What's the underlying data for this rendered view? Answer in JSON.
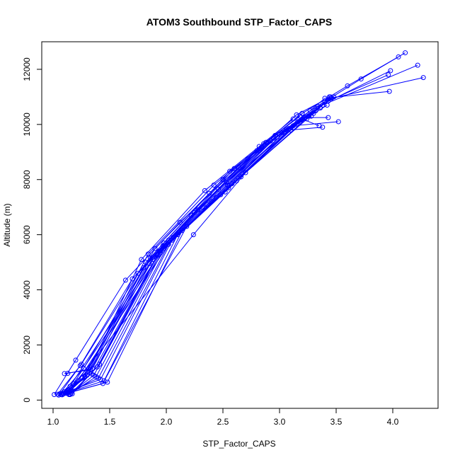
{
  "chart_data": {
    "type": "line",
    "title": "ATOM3 Southbound STP_Factor_CAPS",
    "xlabel": "STP_Factor_CAPS",
    "ylabel": "Altitude (m)",
    "xlim": [
      0.9,
      4.4
    ],
    "ylim": [
      -300,
      13000
    ],
    "xticks": [
      1.0,
      1.5,
      2.0,
      2.5,
      3.0,
      3.5,
      4.0
    ],
    "xtick_labels": [
      "1.0",
      "1.5",
      "2.0",
      "2.5",
      "3.0",
      "3.5",
      "4.0"
    ],
    "yticks": [
      0,
      2000,
      4000,
      6000,
      8000,
      10000,
      12000
    ],
    "ytick_labels": [
      "0",
      "2000",
      "4000",
      "6000",
      "8000",
      "10000",
      "12000"
    ],
    "grid": false,
    "legend": "none",
    "marker": "open-circle",
    "color": "#0000ff",
    "series": [
      {
        "x": [
          1.01,
          1.2,
          1.64,
          2.12,
          2.72,
          3.15,
          3.45
        ],
        "y": [
          200,
          1450,
          4350,
          6450,
          8750,
          10350,
          11000
        ]
      },
      {
        "x": [
          1.04,
          1.25,
          1.75,
          2.25,
          2.84,
          3.27,
          3.72,
          4.11
        ],
        "y": [
          210,
          1300,
          4600,
          6800,
          9150,
          10500,
          11650,
          12600
        ]
      },
      {
        "x": [
          1.06,
          1.24,
          1.7,
          2.22,
          2.8,
          3.2,
          3.6,
          4.05
        ],
        "y": [
          230,
          1250,
          4400,
          6700,
          9050,
          10400,
          11400,
          12450
        ]
      },
      {
        "x": [
          1.08,
          1.27,
          1.8,
          2.28,
          2.9,
          3.34,
          3.98
        ],
        "y": [
          250,
          1150,
          4800,
          6900,
          9350,
          10650,
          11950
        ]
      },
      {
        "x": [
          1.1,
          1.3,
          1.85,
          2.32,
          2.95,
          3.38,
          4.22
        ],
        "y": [
          300,
          1050,
          4950,
          7000,
          9500,
          10700,
          12150
        ]
      },
      {
        "x": [
          1.12,
          1.32,
          1.88,
          2.36,
          3.0,
          3.43,
          3.96
        ],
        "y": [
          330,
          1000,
          5100,
          7100,
          9650,
          10850,
          11800
        ]
      },
      {
        "x": [
          1.13,
          1.34,
          1.92,
          2.4,
          3.05,
          3.46,
          4.27
        ],
        "y": [
          360,
          950,
          5250,
          7200,
          9750,
          10950,
          11700
        ]
      },
      {
        "x": [
          1.14,
          1.36,
          1.95,
          2.44,
          3.08,
          3.4,
          3.97
        ],
        "y": [
          200,
          900,
          5350,
          7350,
          9850,
          10950,
          11200
        ]
      },
      {
        "x": [
          1.15,
          1.38,
          1.98,
          2.48,
          3.12,
          3.52
        ],
        "y": [
          220,
          850,
          5500,
          7450,
          9950,
          10100
        ]
      },
      {
        "x": [
          1.12,
          1.4,
          2.02,
          2.52,
          3.15,
          3.48
        ],
        "y": [
          250,
          800,
          5650,
          7550,
          10000,
          11000
        ]
      },
      {
        "x": [
          1.11,
          1.42,
          2.05,
          2.55,
          3.18,
          3.4
        ],
        "y": [
          280,
          750,
          5800,
          7700,
          10100,
          10800
        ]
      },
      {
        "x": [
          1.09,
          1.45,
          2.1,
          2.58,
          3.2,
          3.35
        ],
        "y": [
          230,
          700,
          6000,
          7850,
          10200,
          9950
        ]
      },
      {
        "x": [
          1.08,
          1.48,
          2.14,
          2.62,
          3.22,
          3.43
        ],
        "y": [
          190,
          650,
          6150,
          7950,
          10250,
          10250
        ]
      },
      {
        "x": [
          1.13,
          1.44,
          2.18,
          2.66,
          3.26,
          3.45
        ],
        "y": [
          260,
          600,
          6300,
          8100,
          10300,
          10950
        ]
      },
      {
        "x": [
          1.15,
          1.16,
          2.24,
          2.7,
          3.3,
          3.44
        ],
        "y": [
          200,
          450,
          6000,
          8250,
          10400,
          11000
        ]
      },
      {
        "x": [
          1.05,
          1.15,
          1.98,
          2.56,
          2.96,
          3.16
        ],
        "y": [
          180,
          500,
          5700,
          8300,
          9600,
          10100
        ]
      },
      {
        "x": [
          1.07,
          1.18,
          2.02,
          2.6,
          3.02,
          3.24
        ],
        "y": [
          200,
          600,
          5800,
          8400,
          9700,
          10200
        ]
      },
      {
        "x": [
          1.09,
          1.22,
          2.06,
          2.64,
          3.06,
          3.28
        ],
        "y": [
          220,
          700,
          5900,
          8450,
          9800,
          10300
        ]
      },
      {
        "x": [
          1.11,
          1.26,
          1.9,
          2.5,
          2.88,
          3.2
        ],
        "y": [
          250,
          800,
          5500,
          8000,
          9350,
          10400
        ]
      },
      {
        "x": [
          1.13,
          1.28,
          1.84,
          2.42,
          2.86,
          3.18
        ],
        "y": [
          280,
          850,
          5300,
          7800,
          9300,
          10300
        ]
      },
      {
        "x": [
          1.14,
          1.3,
          1.78,
          2.34,
          2.82,
          3.12
        ],
        "y": [
          300,
          900,
          5100,
          7600,
          9200,
          10200
        ]
      },
      {
        "x": [
          1.1,
          1.33,
          1.82,
          2.38,
          2.92,
          3.32
        ],
        "y": [
          960,
          1100,
          5000,
          7500,
          9400,
          10500
        ]
      },
      {
        "x": [
          1.13,
          1.35,
          1.86,
          2.46,
          2.98,
          3.36
        ],
        "y": [
          970,
          1150,
          5150,
          7650,
          9550,
          10600
        ]
      },
      {
        "x": [
          1.16,
          1.39,
          1.94,
          2.54,
          3.04,
          3.42
        ],
        "y": [
          250,
          1200,
          5400,
          7800,
          9700,
          10700
        ]
      },
      {
        "x": [
          1.17,
          1.41,
          1.97,
          2.53,
          3.1,
          3.38
        ],
        "y": [
          230,
          1300,
          5600,
          7900,
          9800,
          9900
        ]
      }
    ]
  }
}
